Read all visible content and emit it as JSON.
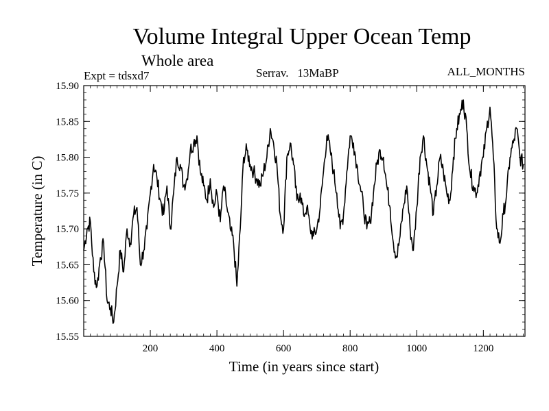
{
  "chart_data": {
    "type": "line",
    "title": "Volume Integral Upper Ocean Temp",
    "subtitle": "Whole area",
    "annotations": {
      "left": "Expt = tdsxd7",
      "center": "Serrav.   13MaBP",
      "right": "ALL_MONTHS"
    },
    "xlabel": "Time (in years since start)",
    "ylabel": "Temperature (in C)",
    "xlim": [
      0,
      1325
    ],
    "ylim": [
      15.55,
      15.9
    ],
    "x_ticks": [
      200,
      400,
      600,
      800,
      1000,
      1200
    ],
    "x_tick_labels": [
      "200",
      "400",
      "600",
      "800",
      "1000",
      "1200"
    ],
    "y_ticks": [
      15.55,
      15.6,
      15.65,
      15.7,
      15.75,
      15.8,
      15.85,
      15.9
    ],
    "y_tick_labels": [
      "15.55",
      "15.60",
      "15.65",
      "15.70",
      "15.75",
      "15.80",
      "15.85",
      "15.90"
    ],
    "grid": false,
    "line_color": "#000000",
    "series": [
      {
        "name": "Volume integral upper ocean temperature",
        "x": [
          0,
          10,
          20,
          30,
          40,
          50,
          60,
          70,
          80,
          90,
          100,
          110,
          120,
          130,
          140,
          150,
          160,
          170,
          180,
          190,
          200,
          210,
          220,
          230,
          240,
          250,
          260,
          270,
          280,
          290,
          300,
          310,
          320,
          330,
          340,
          350,
          360,
          370,
          380,
          390,
          400,
          410,
          420,
          430,
          440,
          450,
          460,
          470,
          480,
          490,
          500,
          510,
          520,
          530,
          540,
          550,
          560,
          570,
          580,
          590,
          600,
          610,
          620,
          630,
          640,
          650,
          660,
          670,
          680,
          690,
          700,
          710,
          720,
          730,
          740,
          750,
          760,
          770,
          780,
          790,
          800,
          810,
          820,
          830,
          840,
          850,
          860,
          870,
          880,
          890,
          900,
          910,
          920,
          930,
          940,
          950,
          960,
          970,
          980,
          990,
          1000,
          1010,
          1020,
          1030,
          1040,
          1050,
          1060,
          1070,
          1080,
          1090,
          1100,
          1110,
          1120,
          1130,
          1140,
          1150,
          1160,
          1170,
          1180,
          1190,
          1200,
          1210,
          1220,
          1230,
          1240,
          1250,
          1260,
          1270,
          1280,
          1290,
          1300,
          1310,
          1320
        ],
        "values": [
          15.67,
          15.7,
          15.71,
          15.64,
          15.62,
          15.66,
          15.68,
          15.6,
          15.59,
          15.57,
          15.62,
          15.67,
          15.64,
          15.7,
          15.68,
          15.72,
          15.73,
          15.65,
          15.67,
          15.7,
          15.75,
          15.79,
          15.77,
          15.74,
          15.72,
          15.76,
          15.7,
          15.75,
          15.8,
          15.79,
          15.76,
          15.77,
          15.81,
          15.82,
          15.83,
          15.78,
          15.76,
          15.74,
          15.77,
          15.73,
          15.75,
          15.71,
          15.76,
          15.73,
          15.7,
          15.68,
          15.62,
          15.7,
          15.8,
          15.81,
          15.79,
          15.78,
          15.77,
          15.76,
          15.78,
          15.8,
          15.84,
          15.82,
          15.79,
          15.72,
          15.7,
          15.8,
          15.82,
          15.79,
          15.74,
          15.75,
          15.72,
          15.73,
          15.7,
          15.69,
          15.7,
          15.73,
          15.78,
          15.83,
          15.81,
          15.78,
          15.75,
          15.7,
          15.72,
          15.78,
          15.83,
          15.82,
          15.79,
          15.76,
          15.73,
          15.7,
          15.71,
          15.75,
          15.79,
          15.81,
          15.8,
          15.76,
          15.73,
          15.68,
          15.66,
          15.69,
          15.73,
          15.76,
          15.7,
          15.67,
          15.73,
          15.8,
          15.83,
          15.79,
          15.76,
          15.72,
          15.76,
          15.8,
          15.78,
          15.75,
          15.74,
          15.8,
          15.84,
          15.86,
          15.88,
          15.84,
          15.78,
          15.76,
          15.75,
          15.78,
          15.8,
          15.84,
          15.87,
          15.8,
          15.7,
          15.68,
          15.72,
          15.75,
          15.8,
          15.82,
          15.84,
          15.8,
          15.79
        ]
      }
    ]
  }
}
